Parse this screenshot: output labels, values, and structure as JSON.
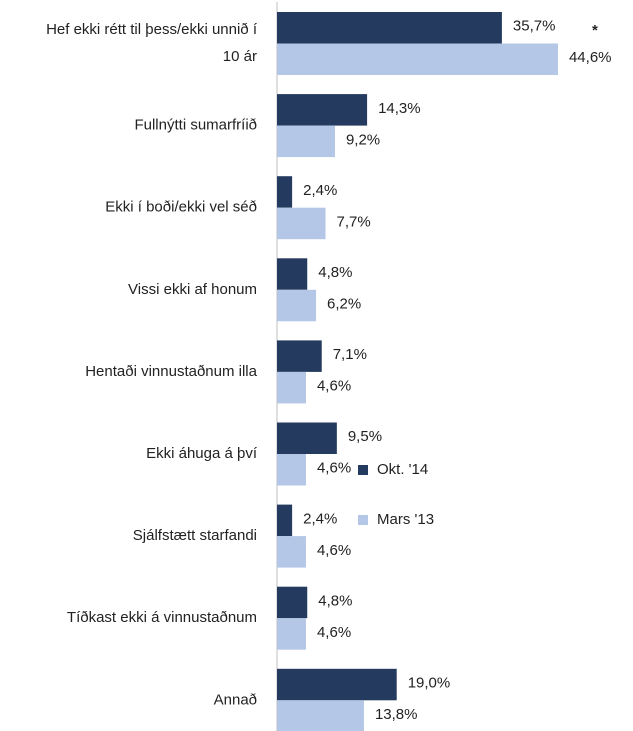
{
  "chart_data": {
    "type": "bar",
    "orientation": "horizontal",
    "categories": [
      "Hef ekki rétt til þess/ekki unnið í 10 ár",
      "Fullnýtti sumarfríið",
      "Ekki í boði/ekki vel séð",
      "Vissi ekki af honum",
      "Hentaði vinnustaðnum illa",
      "Ekki áhuga á því",
      "Sjálfstætt starfandi",
      "Tíðkast ekki á vinnustaðnum",
      "Annað"
    ],
    "series": [
      {
        "name": "Okt. '14",
        "color": "#243a5e",
        "values": [
          35.7,
          14.3,
          2.4,
          4.8,
          7.1,
          9.5,
          2.4,
          4.8,
          19.0
        ],
        "value_labels": [
          "35,7%",
          "14,3%",
          "2,4%",
          "4,8%",
          "7,1%",
          "9,5%",
          "2,4%",
          "4,8%",
          "19,0%"
        ]
      },
      {
        "name": "Mars '13",
        "color": "#b4c7e7",
        "values": [
          44.6,
          9.2,
          7.7,
          6.2,
          4.6,
          4.6,
          4.6,
          4.6,
          13.8
        ],
        "value_labels": [
          "44,6%",
          "9,2%",
          "7,7%",
          "6,2%",
          "4,6%",
          "4,6%",
          "4,6%",
          "4,6%",
          "13,8%"
        ]
      }
    ],
    "annotations": [
      "*"
    ],
    "legend": "right"
  }
}
